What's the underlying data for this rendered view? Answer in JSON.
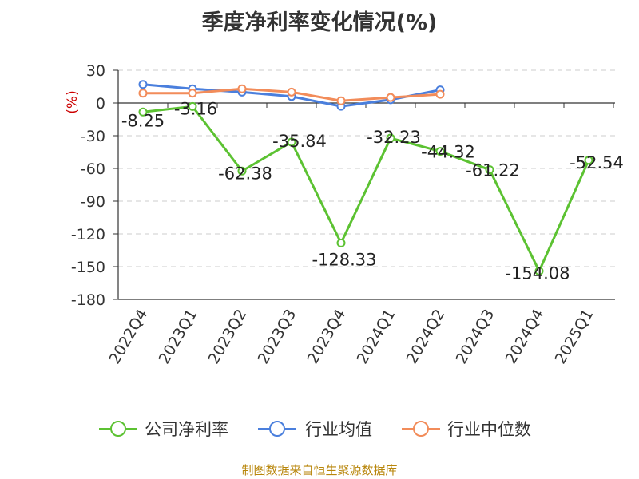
{
  "title": "季度净利率变化情况(%)",
  "source": "制图数据来自恒生聚源数据库",
  "chart_data": {
    "type": "line",
    "title": "季度净利率变化情况(%)",
    "ylabel": "(%)",
    "ylim": [
      -180,
      30
    ],
    "yticks": [
      30,
      0,
      -30,
      -60,
      -90,
      -120,
      -150,
      -180
    ],
    "grid": true,
    "legend_position": "bottom",
    "categories": [
      "2022Q4",
      "2023Q1",
      "2023Q2",
      "2023Q3",
      "2023Q4",
      "2024Q1",
      "2024Q2",
      "2024Q3",
      "2024Q4",
      "2025Q1"
    ],
    "series": [
      {
        "name": "公司净利率",
        "color": "#5cc232",
        "values": [
          -8.25,
          -3.16,
          -62.38,
          -35.84,
          -128.33,
          -32.23,
          -44.32,
          -61.22,
          -154.08,
          -52.54
        ],
        "labels": [
          "-8.25",
          "-3.16",
          "-62.38",
          "-35.84",
          "-128.33",
          "-32.23",
          "-44.32",
          "-61.22",
          "-154.08",
          "-52.54"
        ]
      },
      {
        "name": "行业均值",
        "color": "#4a7fdd",
        "values": [
          17,
          13,
          10,
          6,
          -3,
          3,
          12,
          null,
          null,
          null
        ]
      },
      {
        "name": "行业中位数",
        "color": "#f28c5a",
        "values": [
          9,
          9,
          13,
          10,
          2,
          5,
          8,
          null,
          null,
          null
        ]
      }
    ]
  }
}
